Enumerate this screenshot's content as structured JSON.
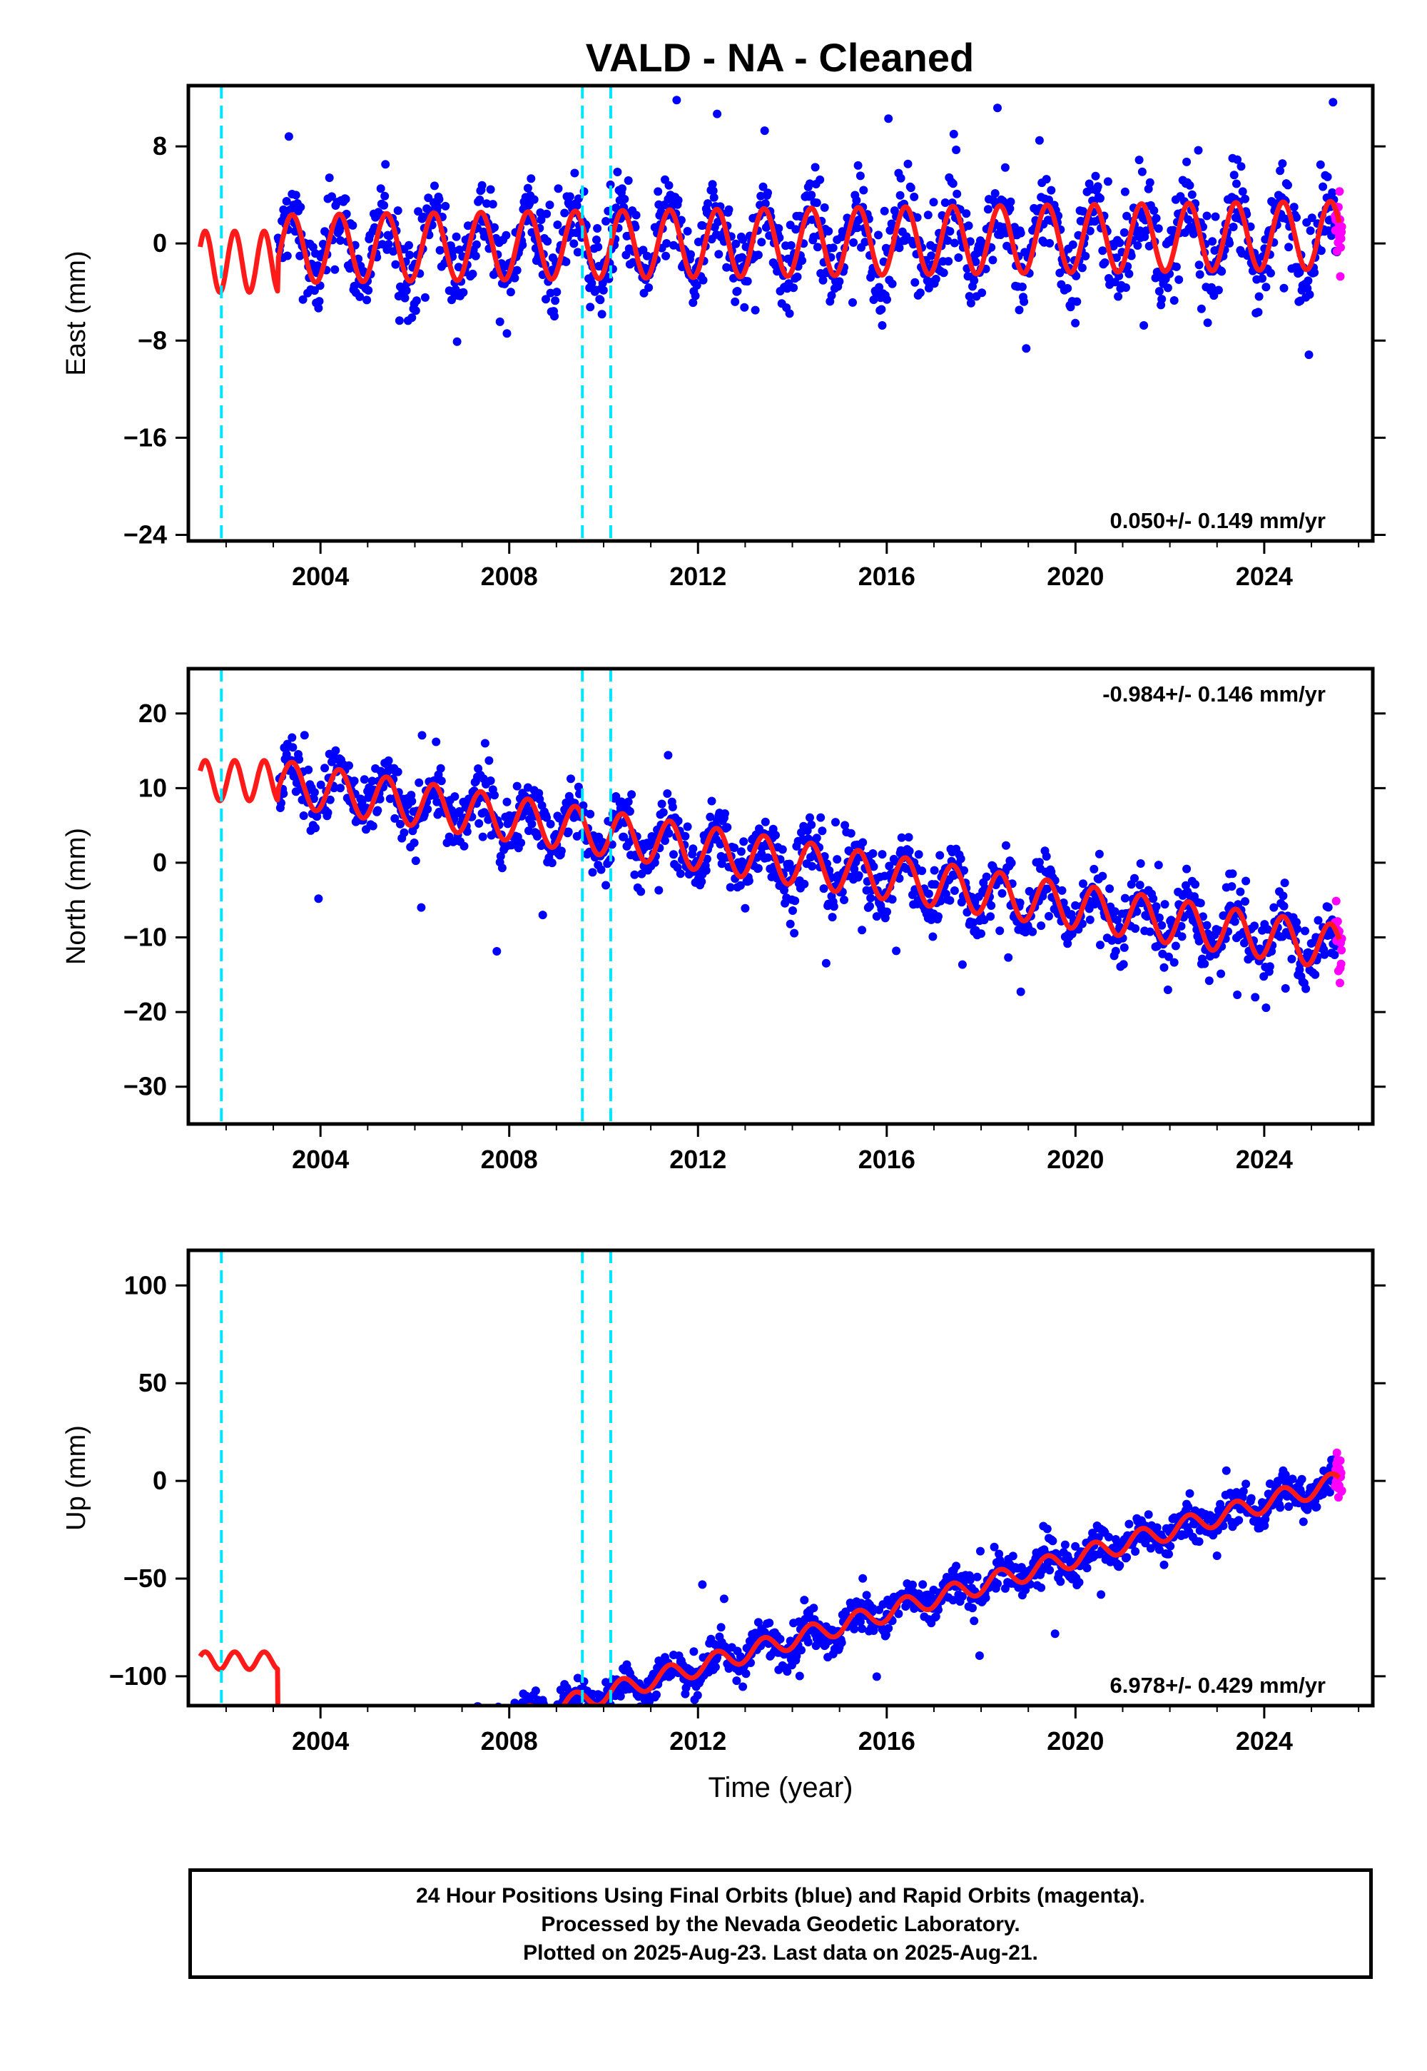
{
  "title": "VALD  - NA - Cleaned",
  "colors": {
    "final_points": "#0000ff",
    "rapid_points": "#ff00ff",
    "model_line": "#ff1a1a",
    "event_lines": "#00e5ff"
  },
  "chart_data": [
    {
      "type": "scatter",
      "ylabel": "East (mm)",
      "xlim": [
        2001.2,
        2026.3
      ],
      "ylim": [
        -24.5,
        13
      ],
      "yticks": [
        8,
        0,
        -8,
        -16,
        -24
      ],
      "xticks": [
        2004,
        2008,
        2012,
        2016,
        2020,
        2024
      ],
      "rate": "0.050+/- 0.149 mm/yr",
      "rate_position": "bottom-right",
      "event_lines": [
        2001.9,
        2009.55,
        2010.15
      ],
      "model": {
        "base": 0.0,
        "slope": 0.05,
        "amplitude": 2.8,
        "early_level": -1.5
      },
      "scatter_stats": {
        "start": 2003.1,
        "end": 2025.55,
        "spread": 2.5
      },
      "series": [
        {
          "name": "Final Orbits (blue)",
          "color": "#0000ff"
        },
        {
          "name": "Rapid Orbits (magenta)",
          "color": "#ff00ff",
          "x_range": [
            2025.5,
            2025.65
          ]
        }
      ]
    },
    {
      "type": "scatter",
      "ylabel": "North (mm)",
      "xlim": [
        2001.2,
        2026.3
      ],
      "ylim": [
        -35,
        26
      ],
      "yticks": [
        20,
        10,
        0,
        -10,
        -20,
        -30
      ],
      "xticks": [
        2004,
        2008,
        2012,
        2016,
        2020,
        2024
      ],
      "rate": "-0.984+/- 0.146 mm/yr",
      "rate_position": "top-right",
      "event_lines": [
        2001.9,
        2009.55,
        2010.15
      ],
      "model": {
        "base": 2.0,
        "slope": -0.984,
        "amplitude": 3.0,
        "early_level": 11.0
      },
      "scatter_stats": {
        "start": 2003.1,
        "end": 2025.55,
        "spread": 3.0
      },
      "series": [
        {
          "name": "Final Orbits (blue)",
          "color": "#0000ff"
        },
        {
          "name": "Rapid Orbits (magenta)",
          "color": "#ff00ff",
          "x_range": [
            2025.5,
            2025.65
          ]
        }
      ]
    },
    {
      "type": "scatter",
      "ylabel": "Up (mm)",
      "xlabel": "Time (year)",
      "xlim": [
        2001.2,
        2026.3
      ],
      "ylim": [
        -115,
        118
      ],
      "yticks": [
        100,
        50,
        0,
        -50,
        -100
      ],
      "xticks": [
        2004,
        2008,
        2012,
        2016,
        2020,
        2024
      ],
      "rate": "6.978+/- 0.429 mm/yr",
      "rate_position": "bottom-right",
      "event_lines": [
        2001.9,
        2009.55,
        2010.15
      ],
      "model": {
        "base": -95.0,
        "slope": 6.978,
        "amplitude": 5.0,
        "early_level": -92.0
      },
      "scatter_stats": {
        "start": 2003.1,
        "end": 2025.55,
        "spread": 7.0
      },
      "series": [
        {
          "name": "Final Orbits (blue)",
          "color": "#0000ff"
        },
        {
          "name": "Rapid Orbits (magenta)",
          "color": "#ff00ff",
          "x_range": [
            2025.5,
            2025.65
          ]
        }
      ]
    }
  ],
  "footer": {
    "line1": "24 Hour Positions Using Final Orbits (blue) and Rapid Orbits (magenta).",
    "line2": "Processed by the Nevada Geodetic Laboratory.",
    "line3": "Plotted on 2025-Aug-23. Last data on 2025-Aug-21."
  }
}
